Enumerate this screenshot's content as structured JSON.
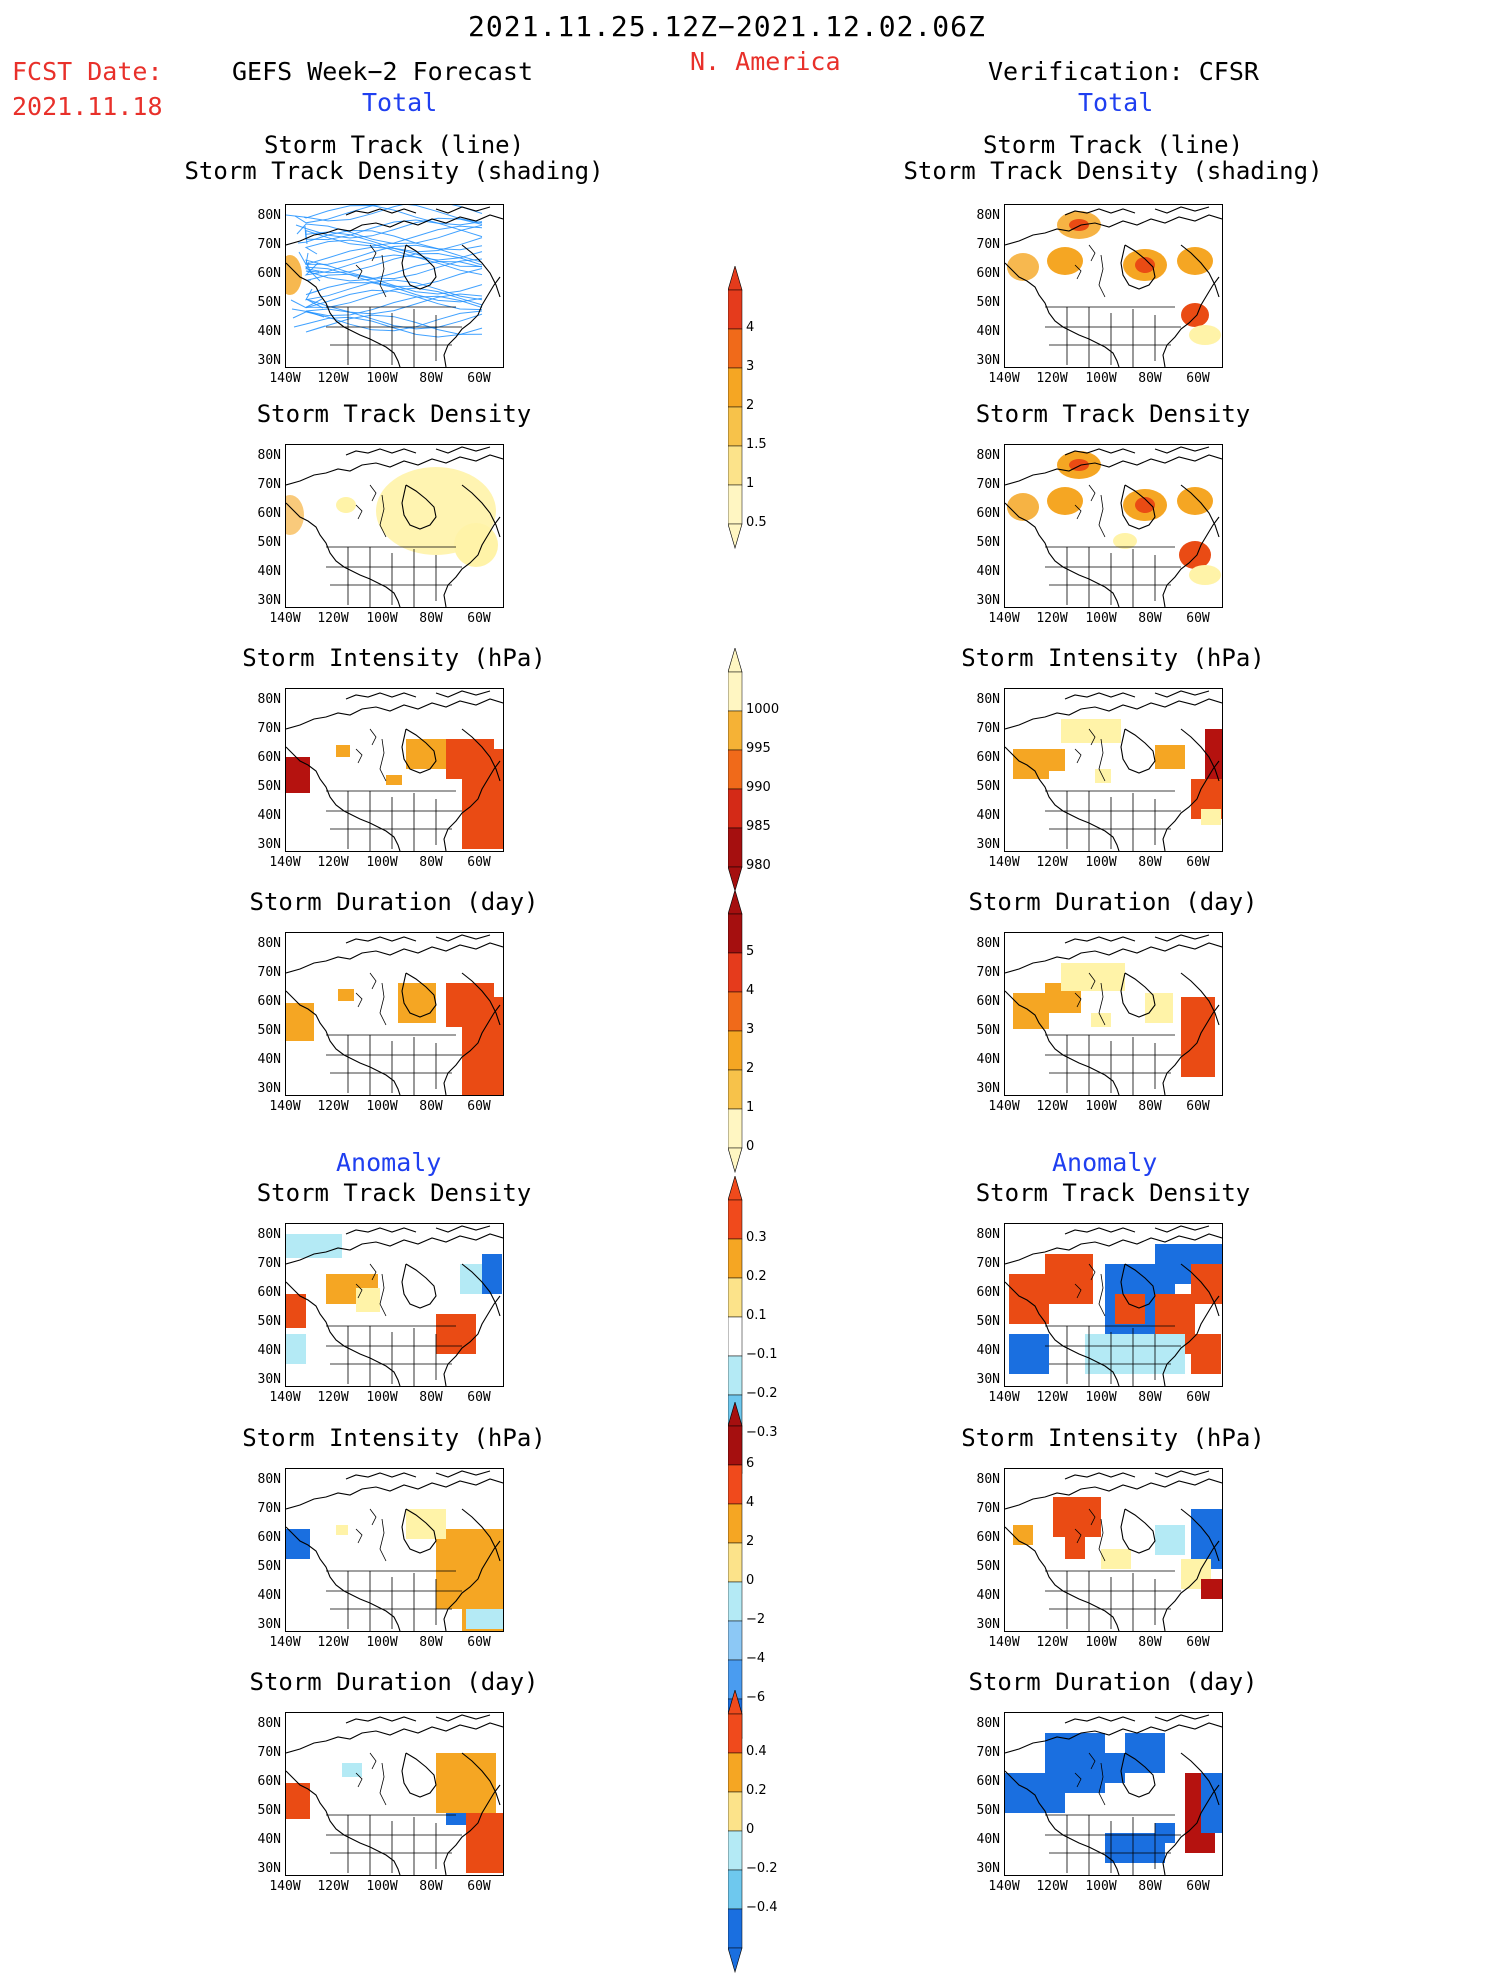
{
  "header": {
    "period": "2021.11.25.12Z−2021.12.02.06Z",
    "region": "N. America",
    "fcst_label": "FCST Date:",
    "fcst_date": "2021.11.18",
    "left_title": "GEFS Week−2 Forecast",
    "right_title": "Verification: CFSR",
    "left_section": "Total",
    "right_section": "Total",
    "anomaly_left": "Anomaly",
    "anomaly_right": "Anomaly"
  },
  "panel_titles": {
    "track_line": "Storm Track (line)",
    "track_shading": "Storm Track Density (shading)",
    "density": "Storm Track Density",
    "intensity": "Storm Intensity (hPa)",
    "duration": "Storm Duration (day)"
  },
  "axes": {
    "lat_labels": [
      "80N",
      "70N",
      "60N",
      "50N",
      "40N",
      "30N"
    ],
    "lon_labels": [
      "140W",
      "120W",
      "100W",
      "80W",
      "60W"
    ]
  },
  "colorbars": {
    "total_density": [
      "4",
      "3",
      "2",
      "1.5",
      "1",
      "0.5"
    ],
    "total_intensity": [
      "1000",
      "995",
      "990",
      "985",
      "980"
    ],
    "total_duration": [
      "5",
      "4",
      "3",
      "2",
      "1",
      "0"
    ],
    "anom_density": [
      "0.3",
      "0.2",
      "0.1",
      "−0.1",
      "−0.2",
      "−0.3"
    ],
    "anom_intensity": [
      "6",
      "4",
      "2",
      "0",
      "−2",
      "−4",
      "−6"
    ],
    "anom_duration": [
      "0.4",
      "0.2",
      "0",
      "−0.2",
      "−0.4"
    ]
  },
  "colors": {
    "title_red": "#e8302a",
    "section_blue": "#1f3ff0",
    "track_line": "#1e90ff",
    "shade_light": "#fff3a8",
    "shade_mid": "#f5a623",
    "shade_strong": "#ea4b14",
    "shade_dark": "#b5120f",
    "anom_neg": "#1a6fe0",
    "anom_neg_light": "#b4eaf5"
  }
}
